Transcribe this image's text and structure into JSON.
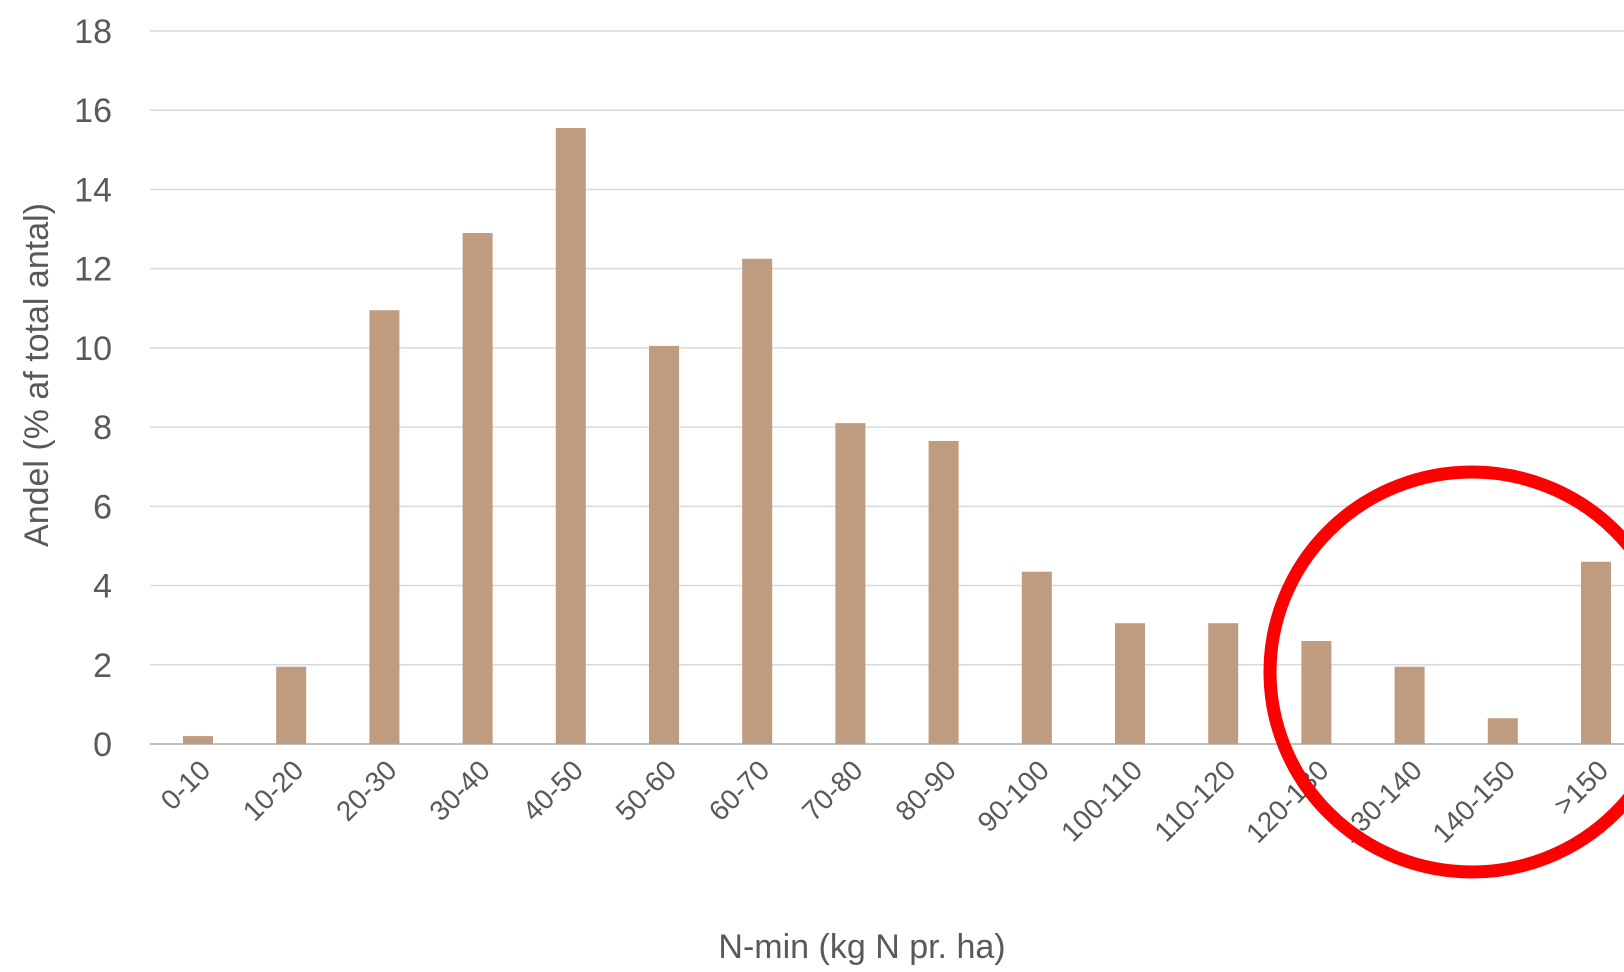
{
  "chart_data": {
    "type": "bar",
    "title": "",
    "xlabel": "N-min (kg N pr. ha)",
    "ylabel": "Andel (% af total antal)",
    "categories": [
      "0-10",
      "10-20",
      "20-30",
      "30-40",
      "40-50",
      "50-60",
      "60-70",
      "70-80",
      "80-90",
      "90-100",
      "100-110",
      "110-120",
      "120-130",
      "130-140",
      "140-150",
      ">150"
    ],
    "series": [
      {
        "values": [
          0.2,
          1.95,
          10.95,
          12.9,
          15.55,
          10.05,
          12.25,
          8.1,
          7.65,
          4.35,
          3.05,
          3.05,
          2.6,
          1.95,
          0.65,
          4.6
        ]
      }
    ],
    "ylim": [
      0,
      18
    ],
    "yticks": [
      0,
      2,
      4,
      6,
      8,
      10,
      12,
      14,
      16,
      18
    ],
    "grid": true,
    "legend": "none",
    "bar_color": "#BF9B7F",
    "annotation": {
      "shape": "circle",
      "color": "#FF0000",
      "highlights": [
        "120-130",
        "130-140",
        "140-150",
        ">150"
      ]
    }
  }
}
